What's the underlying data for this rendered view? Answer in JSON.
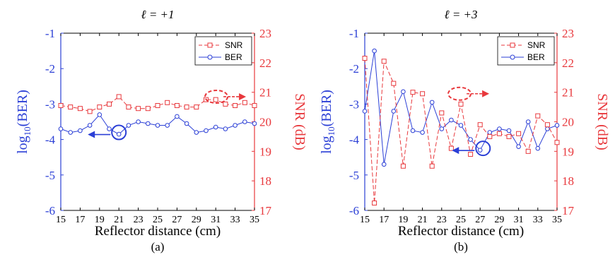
{
  "colors": {
    "ber": "#2b3fd6",
    "snr": "#e8383c",
    "axis": "#000000"
  },
  "chart_data": [
    {
      "type": "line",
      "title": "ℓ = +1",
      "panel_label": "(a)",
      "xlabel": "Reflector distance (cm)",
      "ylabel_left_prefix": "log",
      "ylabel_left_sub": "10",
      "ylabel_left_suffix": "(BER)",
      "ylabel_right": "SNR (dB)",
      "xlim": [
        15,
        35
      ],
      "xticks": [
        15,
        17,
        19,
        21,
        23,
        25,
        27,
        29,
        31,
        33,
        35
      ],
      "ylim_left": [
        -6,
        -1
      ],
      "yticks_left": [
        -1,
        -2,
        -3,
        -4,
        -5,
        -6
      ],
      "ylim_right": [
        17,
        23
      ],
      "yticks_right": [
        23,
        22,
        21,
        20,
        19,
        18,
        17
      ],
      "legend": [
        "SNR",
        "BER"
      ],
      "x": [
        15,
        16,
        17,
        18,
        19,
        20,
        21,
        22,
        23,
        24,
        25,
        26,
        27,
        28,
        29,
        30,
        31,
        32,
        33,
        34,
        35
      ],
      "series": [
        {
          "name": "BER",
          "axis": "left",
          "values": [
            -3.7,
            -3.8,
            -3.75,
            -3.6,
            -3.3,
            -3.7,
            -3.85,
            -3.6,
            -3.5,
            -3.55,
            -3.6,
            -3.6,
            -3.35,
            -3.55,
            -3.8,
            -3.75,
            -3.65,
            -3.7,
            -3.6,
            -3.5,
            -3.55
          ]
        },
        {
          "name": "SNR",
          "axis": "right",
          "values": [
            20.55,
            20.5,
            20.45,
            20.35,
            20.5,
            20.6,
            20.85,
            20.5,
            20.45,
            20.45,
            20.55,
            20.65,
            20.55,
            20.5,
            20.5,
            20.75,
            20.75,
            20.6,
            20.55,
            20.65,
            20.55
          ]
        }
      ]
    },
    {
      "type": "line",
      "title": "ℓ = +3",
      "panel_label": "(b)",
      "xlabel": "Reflector distance (cm)",
      "ylabel_left_prefix": "log",
      "ylabel_left_sub": "10",
      "ylabel_left_suffix": "(BER)",
      "ylabel_right": "SNR (dB)",
      "xlim": [
        15,
        35
      ],
      "xticks": [
        15,
        17,
        19,
        21,
        23,
        25,
        27,
        29,
        31,
        33,
        35
      ],
      "ylim_left": [
        -6,
        -1
      ],
      "yticks_left": [
        -1,
        -2,
        -3,
        -4,
        -5,
        -6
      ],
      "ylim_right": [
        17,
        23
      ],
      "yticks_right": [
        23,
        22,
        21,
        20,
        19,
        18,
        17
      ],
      "legend": [
        "SNR",
        "BER"
      ],
      "x": [
        15,
        16,
        17,
        18,
        19,
        20,
        21,
        22,
        23,
        24,
        25,
        26,
        27,
        28,
        29,
        30,
        31,
        32,
        33,
        34,
        35
      ],
      "series": [
        {
          "name": "BER",
          "axis": "left",
          "values": [
            -3.2,
            -1.5,
            -4.7,
            -3.2,
            -2.65,
            -3.75,
            -3.8,
            -2.95,
            -3.7,
            -3.45,
            -3.6,
            -4.0,
            -4.3,
            -3.8,
            -3.7,
            -3.75,
            -4.2,
            -3.5,
            -4.25,
            -3.7,
            -3.6
          ]
        },
        {
          "name": "SNR",
          "axis": "right",
          "values": [
            22.15,
            17.25,
            22.05,
            21.3,
            18.5,
            21.0,
            20.95,
            18.5,
            20.3,
            19.1,
            20.6,
            18.9,
            19.9,
            19.5,
            19.6,
            19.5,
            19.6,
            19.0,
            20.2,
            19.9,
            19.3
          ]
        }
      ]
    }
  ]
}
